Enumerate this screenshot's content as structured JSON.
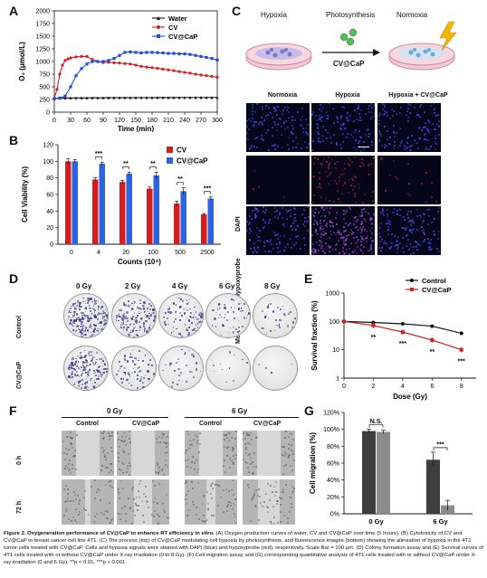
{
  "panels": {
    "a": "A",
    "b": "B",
    "c": "C",
    "d": "D",
    "e": "E",
    "f": "F",
    "g": "G"
  },
  "schematic": {
    "left_label": "Hypoxia",
    "middle_label": "Photosynthesis",
    "right_label": "Normoxia",
    "agent_label": "CV@CaP"
  },
  "fluorescence": {
    "columns": [
      "Normoxia",
      "Hypoxia",
      "Hypoxia + CV@CaP"
    ],
    "rows": [
      "DAPI",
      "Hypoxyprobe",
      "Merge"
    ]
  },
  "colony": {
    "columns": [
      "0 Gy",
      "2 Gy",
      "4 Gy",
      "6 Gy",
      "8 Gy"
    ],
    "rows": [
      "Control",
      "CV@CaP"
    ]
  },
  "migration": {
    "dose_headers": [
      "0 Gy",
      "6 Gy"
    ],
    "group_headers": [
      "Control",
      "CV@CaP",
      "Control",
      "CV@CaP"
    ],
    "rows": [
      "0 h",
      "72 h"
    ]
  },
  "chart_data": [
    {
      "id": "A",
      "type": "line",
      "xlabel": "Time (min)",
      "ylabel": "O₂ (μmol/L)",
      "xlim": [
        0,
        300
      ],
      "ylim": [
        0,
        2000
      ],
      "xticks": [
        0,
        30,
        60,
        90,
        120,
        150,
        180,
        210,
        240,
        270,
        300
      ],
      "yticks": [
        0,
        250,
        500,
        750,
        1000,
        1250,
        1500,
        1750,
        2000
      ],
      "legend": "top-right",
      "series": [
        {
          "name": "Water",
          "color": "#111111",
          "marker": "triangle",
          "x": [
            0,
            10,
            20,
            30,
            40,
            50,
            60,
            70,
            80,
            90,
            100,
            110,
            120,
            130,
            140,
            150,
            160,
            170,
            180,
            190,
            200,
            210,
            220,
            230,
            240,
            250,
            260,
            270,
            280,
            290,
            300
          ],
          "y": [
            265,
            275,
            280,
            280,
            282,
            283,
            283,
            284,
            285,
            285,
            286,
            286,
            287,
            287,
            287,
            288,
            288,
            288,
            288,
            289,
            289,
            289,
            289,
            290,
            290,
            290,
            290,
            290,
            290,
            290,
            290
          ]
        },
        {
          "name": "CV",
          "color": "#d11f1f",
          "marker": "circle",
          "x": [
            0,
            5,
            10,
            15,
            20,
            25,
            30,
            40,
            50,
            60,
            70,
            80,
            90,
            100,
            110,
            120,
            130,
            140,
            150,
            160,
            170,
            180,
            190,
            200,
            210,
            220,
            230,
            240,
            250,
            260,
            270,
            280,
            290,
            300
          ],
          "y": [
            280,
            450,
            750,
            930,
            1020,
            1050,
            1070,
            1090,
            1100,
            1100,
            1040,
            1000,
            980,
            985,
            975,
            970,
            960,
            950,
            930,
            905,
            890,
            880,
            865,
            850,
            835,
            820,
            800,
            785,
            770,
            750,
            735,
            720,
            705,
            690
          ]
        },
        {
          "name": "CV@CaP",
          "color": "#1f4fd1",
          "marker": "square",
          "x": [
            0,
            10,
            20,
            30,
            40,
            50,
            60,
            70,
            80,
            90,
            100,
            110,
            120,
            130,
            140,
            150,
            160,
            170,
            180,
            190,
            200,
            210,
            220,
            230,
            240,
            250,
            260,
            270,
            280,
            290,
            300
          ],
          "y": [
            270,
            280,
            320,
            500,
            720,
            860,
            950,
            1000,
            1000,
            1000,
            1020,
            1060,
            1120,
            1180,
            1190,
            1180,
            1170,
            1180,
            1180,
            1175,
            1170,
            1160,
            1160,
            1150,
            1150,
            1140,
            1120,
            1100,
            1080,
            1060,
            1030
          ]
        }
      ]
    },
    {
      "id": "B",
      "type": "bar",
      "xlabel": "Counts (10⁴)",
      "ylabel": "Cell Viability (%)",
      "ylim": [
        0,
        120
      ],
      "yticks": [
        0,
        20,
        40,
        60,
        80,
        100,
        120
      ],
      "categories": [
        "0",
        "4",
        "20",
        "100",
        "500",
        "2500"
      ],
      "legend": "top-right",
      "series": [
        {
          "name": "CV",
          "color": "#d11f1f",
          "values": [
            100,
            78,
            75,
            67,
            49,
            36
          ],
          "errors": [
            3,
            2,
            2,
            2,
            3,
            1
          ]
        },
        {
          "name": "CV@CaP",
          "color": "#2e63e0",
          "values": [
            100,
            97,
            85,
            83,
            64,
            55
          ],
          "errors": [
            2,
            2,
            2,
            4,
            4,
            2
          ]
        }
      ],
      "significance": [
        "",
        "***",
        "**",
        "**",
        "**",
        "***"
      ]
    },
    {
      "id": "E",
      "type": "line",
      "xlabel": "Dose (Gy)",
      "ylabel": "Survival fraction (%)",
      "yscale": "log",
      "xlim": [
        0,
        9
      ],
      "ylim": [
        1,
        1000
      ],
      "xticks": [
        0,
        2,
        4,
        6,
        8
      ],
      "yticks": [
        1,
        10,
        100,
        1000
      ],
      "legend": "top-right",
      "series": [
        {
          "name": "Control",
          "color": "#111111",
          "marker": "circle",
          "x": [
            0,
            2,
            4,
            6,
            8
          ],
          "y": [
            100,
            92,
            82,
            68,
            38
          ]
        },
        {
          "name": "CV@CaP",
          "color": "#d11f1f",
          "marker": "square",
          "x": [
            0,
            2,
            4,
            6,
            8
          ],
          "y": [
            100,
            72,
            42,
            22,
            10
          ]
        }
      ],
      "significance": [
        {
          "x": 2,
          "label": "**"
        },
        {
          "x": 4,
          "label": "***"
        },
        {
          "x": 6,
          "label": "**"
        },
        {
          "x": 8,
          "label": "***"
        }
      ]
    },
    {
      "id": "G",
      "type": "bar",
      "xlabel": "",
      "ylabel": "Cell migration (%)",
      "ylim": [
        0,
        120
      ],
      "yticks": [
        "0%",
        "20%",
        "40%",
        "60%",
        "80%",
        "100%",
        "120%"
      ],
      "categories": [
        "0 Gy",
        "6 Gy"
      ],
      "series": [
        {
          "name": "Control",
          "color": "#3e3e3e",
          "values": [
            98,
            64
          ],
          "errors": [
            2,
            9
          ]
        },
        {
          "name": "CV@CaP",
          "color": "#8c8c8c",
          "values": [
            97,
            10
          ],
          "errors": [
            2,
            6
          ]
        }
      ],
      "significance": [
        "N.S.",
        "***"
      ]
    }
  ],
  "caption": {
    "title": "Figure 2. Oxygeneration performance of CV@CaP to enhance RT efficiency in vitro.",
    "body": " (A) Oxygen production curves of water, CV and CV@CaP over time (5 hours). (B) Cytotoxicity of CV and CV@CaP to breast cancer cell line 4T1. (C) The process (top) of CV@CaP modulating cell hypoxia by photosynthesis, and fluorescence images (bottom) showing the alleviation of hypoxia in the 4T1 tumor cells treated with CV@CaP. Cells and hypoxia signals were stained with DAPI (blue) and hypoxyprobe (red), respectively. Scale Bar = 100 μm. (D) Colony formation assay and (E) Survival curves of 4T1 cells treated with or without CV@CaP under X-ray irradiation (0 to 8 Gy). (F) Cell migration assay and (G) corresponding quantitative analysis of 4T1 cells treated with or without CV@CaP under X-ray irradiation (0 and 6 Gy). **p < 0.01, ***p < 0.001."
  }
}
